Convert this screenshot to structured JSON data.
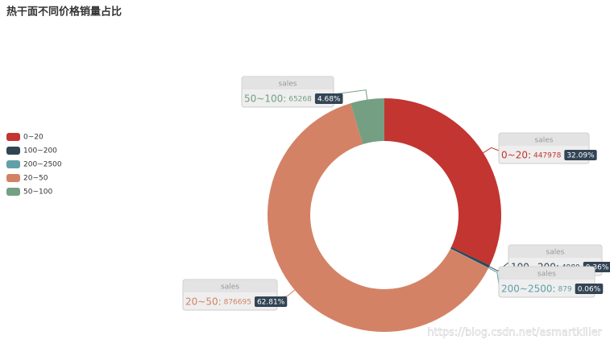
{
  "chart_data": {
    "type": "donut",
    "title": "热干面不同价格销量占比",
    "series_name": "sales",
    "categories": [
      "0~20",
      "100~200",
      "200~2500",
      "20~50",
      "50~100"
    ],
    "values": [
      447978,
      4980,
      879,
      876695,
      65268
    ],
    "value_labels": [
      "447978",
      "4980",
      "879",
      "876695",
      "65268"
    ],
    "percent_labels": [
      "32.09%",
      "0.36%",
      "0.06%",
      "62.81%",
      "4.68%"
    ],
    "colors": [
      "#c23531",
      "#2f4554",
      "#61a0a8",
      "#d48265",
      "#749f83"
    ],
    "legend": "left",
    "watermark": "https://blog.csdn.net/asmartkiller"
  }
}
